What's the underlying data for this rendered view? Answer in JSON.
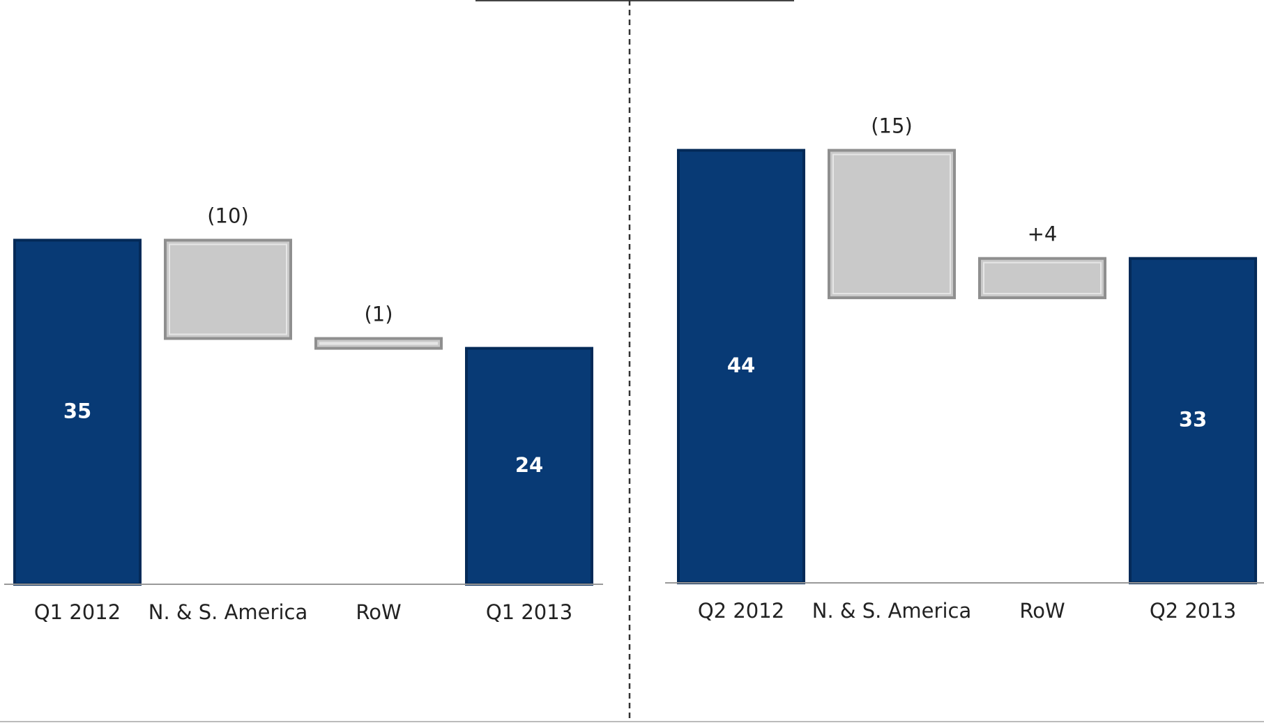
{
  "chart_data": [
    {
      "type": "waterfall",
      "categories": [
        "Q1 2012",
        "N. & S. America",
        "RoW",
        "Q1 2013"
      ],
      "values": [
        35,
        -10,
        -1,
        24
      ],
      "value_labels": [
        "35",
        "(10)",
        "(1)",
        "24"
      ],
      "total_color": "#083a75",
      "change_color": "#c9c9c9",
      "ylim": [
        0,
        50
      ]
    },
    {
      "type": "waterfall",
      "categories": [
        "Q2 2012",
        "N. & S. America",
        "RoW",
        "Q2 2013"
      ],
      "values": [
        44,
        -15,
        4,
        33
      ],
      "value_labels": [
        "44",
        "(15)",
        "+4",
        "33"
      ],
      "total_color": "#083a75",
      "change_color": "#c9c9c9",
      "ylim": [
        0,
        50
      ]
    }
  ]
}
